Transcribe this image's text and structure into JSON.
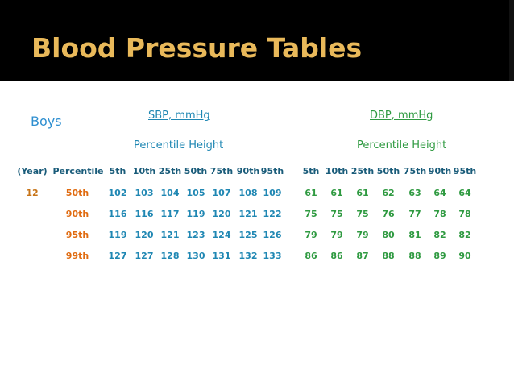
{
  "title": "Blood Pressure Tables",
  "group": "Boys",
  "sbp_header": "SBP, mmHg",
  "dbp_header": "DBP, mmHg",
  "sbp_sub": "Percentile Height",
  "dbp_sub": "Percentile Height",
  "col_year": "(Year)",
  "col_percentile": "Percentile",
  "height_cols": [
    "5th",
    "10th",
    "25th",
    "50th",
    "75th",
    "90th",
    "95th"
  ],
  "age": "12",
  "rows": [
    {
      "pct": "50th",
      "sbp": [
        "102",
        "103",
        "104",
        "105",
        "107",
        "108",
        "109"
      ],
      "dbp": [
        "61",
        "61",
        "61",
        "62",
        "63",
        "64",
        "64"
      ]
    },
    {
      "pct": "90th",
      "sbp": [
        "116",
        "116",
        "117",
        "119",
        "120",
        "121",
        "122"
      ],
      "dbp": [
        "75",
        "75",
        "75",
        "76",
        "77",
        "78",
        "78"
      ]
    },
    {
      "pct": "95th",
      "sbp": [
        "119",
        "120",
        "121",
        "123",
        "124",
        "125",
        "126"
      ],
      "dbp": [
        "79",
        "79",
        "79",
        "80",
        "81",
        "82",
        "82"
      ]
    },
    {
      "pct": "99th",
      "sbp": [
        "127",
        "127",
        "128",
        "130",
        "131",
        "132",
        "133"
      ],
      "dbp": [
        "86",
        "86",
        "87",
        "88",
        "88",
        "89",
        "90"
      ]
    }
  ]
}
